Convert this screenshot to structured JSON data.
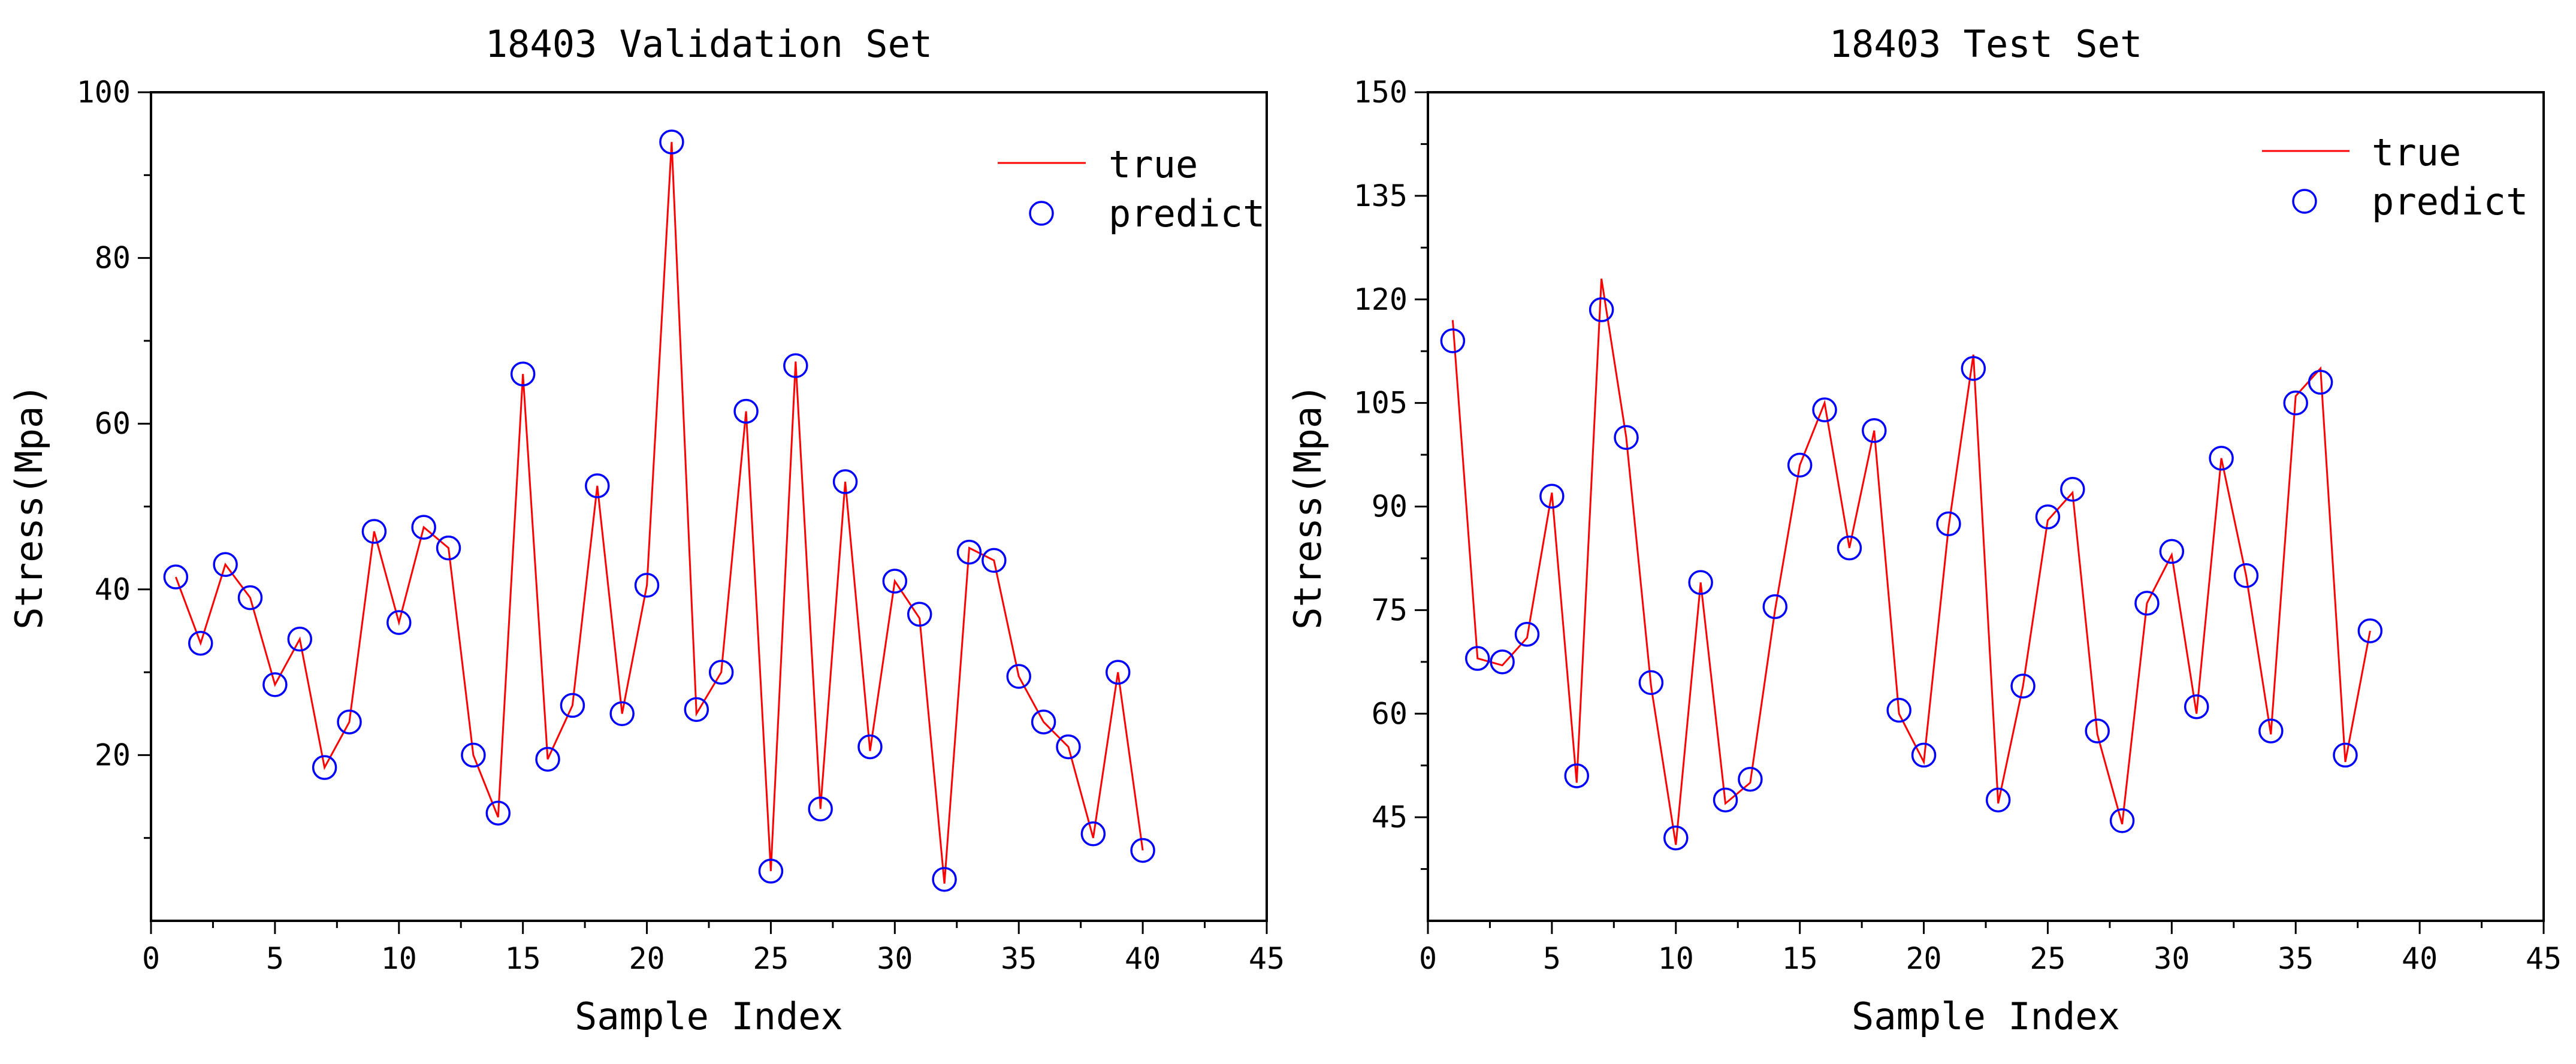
{
  "colors": {
    "true_line": "#ff0000",
    "predict_marker": "#0000ff",
    "axis": "#000000",
    "background": "#ffffff"
  },
  "chart_data": [
    {
      "type": "line",
      "title": "18403 Validation Set",
      "xlabel": "Sample Index",
      "ylabel": "Stress(Mpa)",
      "xlim": [
        0,
        45
      ],
      "ylim": [
        0,
        100
      ],
      "xticks": [
        0,
        5,
        10,
        15,
        20,
        25,
        30,
        35,
        40,
        45
      ],
      "yticks": [
        20,
        40,
        60,
        80,
        100
      ],
      "xtick_labels": [
        "0",
        "5",
        "10",
        "15",
        "20",
        "25",
        "30",
        "35",
        "40",
        "45"
      ],
      "ytick_labels": [
        "20",
        "40",
        "60",
        "80",
        "100"
      ],
      "grid": false,
      "legend_position": "top-right",
      "x": [
        1,
        2,
        3,
        4,
        5,
        6,
        7,
        8,
        9,
        10,
        11,
        12,
        13,
        14,
        15,
        16,
        17,
        18,
        19,
        20,
        21,
        22,
        23,
        24,
        25,
        26,
        27,
        28,
        29,
        30,
        31,
        32,
        33,
        34,
        35,
        36,
        37,
        38,
        39,
        40
      ],
      "series": [
        {
          "name": "true",
          "style": "line",
          "values": [
            41.5,
            33.5,
            43,
            39,
            28.5,
            34,
            18.5,
            24,
            47,
            36,
            47.5,
            45,
            20,
            12.5,
            66,
            19.5,
            26,
            52.5,
            25,
            40.5,
            94,
            25,
            30,
            61.5,
            6,
            67.5,
            13.5,
            53,
            20.5,
            41,
            36.5,
            4.5,
            45,
            43.5,
            29.5,
            24,
            21,
            10,
            30,
            8.5
          ]
        },
        {
          "name": "predict",
          "style": "circle",
          "values": [
            41.5,
            33.5,
            43,
            39,
            28.5,
            34,
            18.5,
            24,
            47,
            36,
            47.5,
            45,
            20,
            13,
            66,
            19.5,
            26,
            52.5,
            25,
            40.5,
            94,
            25.5,
            30,
            61.5,
            6,
            67,
            13.5,
            53,
            21,
            41,
            37,
            5,
            44.5,
            43.5,
            29.5,
            24,
            21,
            10.5,
            30,
            8.5
          ]
        }
      ]
    },
    {
      "type": "line",
      "title": "18403 Test Set",
      "xlabel": "Sample Index",
      "ylabel": "Stress(Mpa)",
      "xlim": [
        0,
        45
      ],
      "ylim": [
        30,
        150
      ],
      "xticks": [
        0,
        5,
        10,
        15,
        20,
        25,
        30,
        35,
        40,
        45
      ],
      "yticks": [
        45,
        60,
        75,
        90,
        105,
        120,
        135,
        150
      ],
      "xtick_labels": [
        "0",
        "5",
        "10",
        "15",
        "20",
        "25",
        "30",
        "35",
        "40",
        "45"
      ],
      "ytick_labels": [
        "45",
        "60",
        "75",
        "90",
        "105",
        "120",
        "135",
        "150"
      ],
      "grid": false,
      "legend_position": "top-right",
      "x": [
        1,
        2,
        3,
        4,
        5,
        6,
        7,
        8,
        9,
        10,
        11,
        12,
        13,
        14,
        15,
        16,
        17,
        18,
        19,
        20,
        21,
        22,
        23,
        24,
        25,
        26,
        27,
        28,
        29,
        30,
        31,
        32,
        33,
        34,
        35,
        36,
        37,
        38
      ],
      "series": [
        {
          "name": "true",
          "style": "line",
          "values": [
            117,
            68,
            67,
            71,
            92,
            50,
            123,
            100,
            64,
            41,
            79,
            47,
            50,
            75,
            96,
            105,
            84,
            101,
            60,
            53,
            87,
            112,
            47,
            64,
            88,
            92,
            57,
            44,
            76,
            83,
            60,
            97,
            80,
            57,
            106,
            110,
            53,
            72
          ]
        },
        {
          "name": "predict",
          "style": "circle",
          "values": [
            114,
            68,
            67.5,
            71.5,
            91.5,
            51,
            118.5,
            100,
            64.5,
            42,
            79,
            47.5,
            50.5,
            75.5,
            96,
            104,
            84,
            101,
            60.5,
            54,
            87.5,
            110,
            47.5,
            64,
            88.5,
            92.5,
            57.5,
            44.5,
            76,
            83.5,
            61,
            97,
            80,
            57.5,
            105,
            108,
            54,
            72
          ]
        }
      ]
    }
  ]
}
